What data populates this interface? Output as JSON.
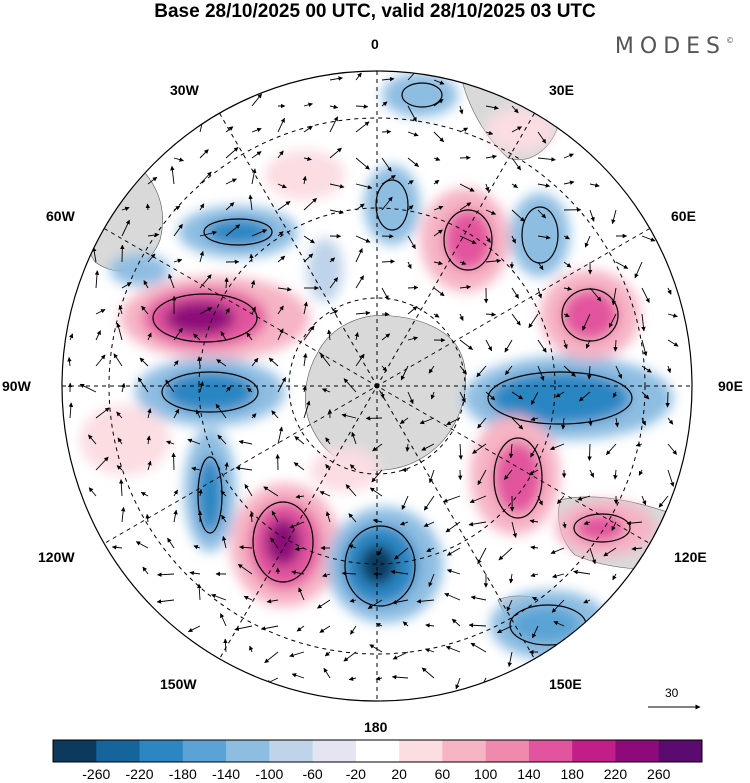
{
  "title": "Base 28/10/2025 00 UTC, valid 28/10/2025 03 UTC",
  "logo": "MODES",
  "logo_mark": "©",
  "map_labels": {
    "lon_0": "0",
    "lon_30e": "30E",
    "lon_60e": "60E",
    "lon_90e": "90E",
    "lon_120e": "120E",
    "lon_150e": "150E",
    "lon_180": "180",
    "lon_150w": "150W",
    "lon_120w": "120W",
    "lon_90w": "90W",
    "lon_60w": "60W",
    "lon_30w": "30W"
  },
  "reference_vector": {
    "label": "30"
  },
  "colorbar": {
    "labels": [
      "-260",
      "-220",
      "-180",
      "-140",
      "-100",
      "-60",
      "-20",
      "20",
      "60",
      "100",
      "140",
      "180",
      "220",
      "260"
    ],
    "colors": [
      "#0b3a5e",
      "#15649b",
      "#2c86c2",
      "#5aa3d4",
      "#8ebde2",
      "#bfd3ea",
      "#e5e4f2",
      "#ffffff",
      "#fbdde2",
      "#f6b4c4",
      "#ef89ae",
      "#e2559e",
      "#c21e8a",
      "#8e0a7a",
      "#5b0a70"
    ]
  },
  "colors": {
    "ocean_background": "#ffffff",
    "land": "#d9d9d9",
    "grid": "#000000"
  }
}
